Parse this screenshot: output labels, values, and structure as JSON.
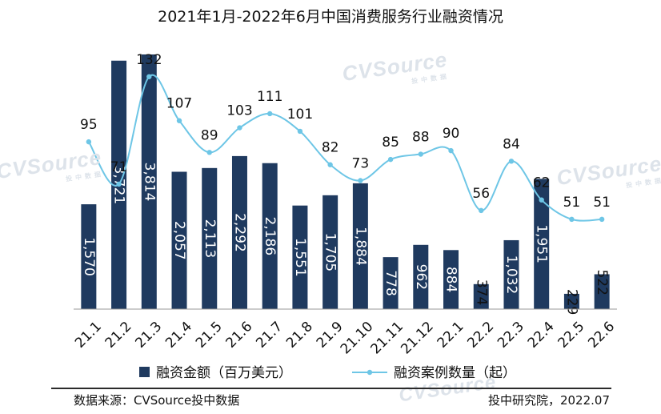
{
  "chart_data": {
    "type": "bar",
    "title": "2021年1月-2022年6月中国消费服务行业融资情况",
    "categories": [
      "21.1",
      "21.2",
      "21.3",
      "21.4",
      "21.5",
      "21.6",
      "21.7",
      "21.8",
      "21.9",
      "21.10",
      "21.11",
      "21.12",
      "22.1",
      "22.2",
      "22.3",
      "22.4",
      "22.5",
      "22.6"
    ],
    "series": [
      {
        "name": "融资金额（百万美元）",
        "kind": "bar",
        "axis": "left",
        "values": [
          1570,
          3721,
          3814,
          2057,
          2113,
          2292,
          2186,
          1551,
          1705,
          1884,
          778,
          962,
          884,
          374,
          1032,
          1951,
          229,
          522
        ],
        "labels": [
          "1,570",
          "3,721",
          "3,814",
          "2,057",
          "2,113",
          "2,292",
          "2,186",
          "1,551",
          "1,705",
          "1,884",
          "778",
          "962",
          "884",
          "374",
          "1,032",
          "1,951",
          "229",
          "522"
        ],
        "color": "#1f3a5f"
      },
      {
        "name": "融资案例数量（起）",
        "kind": "line",
        "axis": "right",
        "values": [
          95,
          71,
          132,
          107,
          89,
          103,
          111,
          101,
          82,
          73,
          85,
          88,
          90,
          56,
          84,
          62,
          51,
          51
        ],
        "color": "#6ec6e6"
      }
    ],
    "y_left_range": [
      0,
      3850
    ],
    "y_right_range": [
      0,
      146
    ],
    "legend_position": "bottom-center"
  },
  "watermarks": [
    {
      "main": "CVSource",
      "sub": "投中数据"
    },
    {
      "main": "CVSource",
      "sub": "投中数据"
    },
    {
      "main": "CVSource",
      "sub": "投中数据"
    },
    {
      "main": "CVSource",
      "sub": "投中数据"
    }
  ],
  "footer": {
    "source": "数据来源：CVSource投中数据",
    "credit": "投中研究院，2022.07"
  }
}
